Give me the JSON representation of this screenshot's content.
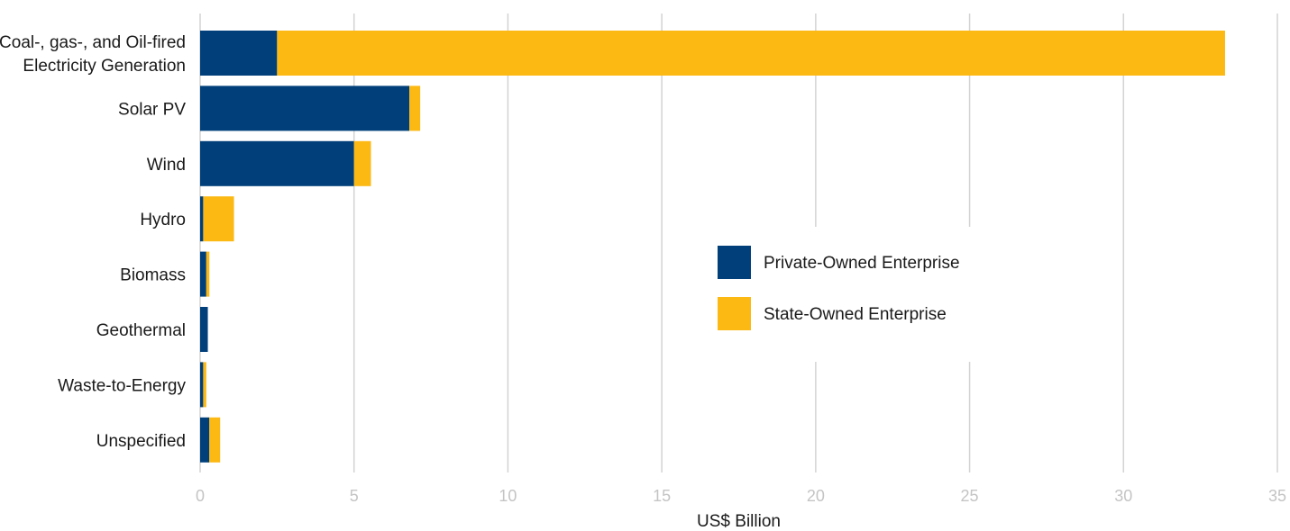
{
  "chart_data": {
    "type": "bar",
    "orientation": "horizontal",
    "stacked": true,
    "categories": [
      "Coal-, gas-, and Oil-fired\nElectricity Generation",
      "Solar PV",
      "Wind",
      "Hydro",
      "Biomass",
      "Geothermal",
      "Waste-to-Energy",
      "Unspecified"
    ],
    "series": [
      {
        "name": "Private-Owned Enterprise",
        "color": "#003f7a",
        "values": [
          2.5,
          6.8,
          5.0,
          0.1,
          0.2,
          0.25,
          0.1,
          0.3
        ]
      },
      {
        "name": "State-Owned Enterprise",
        "color": "#fcb813",
        "values": [
          30.8,
          0.35,
          0.55,
          1.0,
          0.1,
          0.0,
          0.1,
          0.35
        ]
      }
    ],
    "xlabel": "US$ Billion",
    "xlim": [
      0,
      35
    ],
    "xticks": [
      0,
      5,
      10,
      15,
      20,
      25,
      30,
      35
    ],
    "grid": "vertical",
    "legend_position": "center-right"
  }
}
